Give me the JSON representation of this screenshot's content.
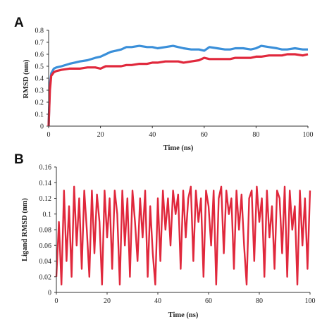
{
  "panels": [
    {
      "letter": "A",
      "xlabel": "Time (ns)",
      "ylabel": "RMSD (nm)",
      "xticks": [
        "0",
        "20",
        "40",
        "60",
        "80",
        "100"
      ],
      "yticks": [
        "0",
        "0.1",
        "0.2",
        "0.3",
        "0.4",
        "0.5",
        "0.6",
        "0.7",
        "0.8"
      ]
    },
    {
      "letter": "B",
      "xlabel": "Time (ns)",
      "ylabel": "Ligand RMSD (nm)",
      "xticks": [
        "0",
        "20",
        "40",
        "60",
        "80",
        "100"
      ],
      "yticks": [
        "0",
        "0.02",
        "0.04",
        "0.06",
        "0.08",
        "0.1",
        "0.12",
        "0.14",
        "0.16"
      ]
    }
  ],
  "chart_data": [
    {
      "type": "line",
      "title": "",
      "xlabel": "Time (ns)",
      "ylabel": "RMSD (nm)",
      "xlim": [
        0,
        100
      ],
      "ylim": [
        0,
        0.8
      ],
      "grid": false,
      "legend": "none",
      "series": [
        {
          "color": "#3a8fd9",
          "x": [
            0,
            0.5,
            1,
            2,
            3,
            5,
            8,
            10,
            12,
            15,
            18,
            20,
            22,
            24,
            26,
            28,
            30,
            32,
            35,
            38,
            40,
            42,
            45,
            48,
            50,
            52,
            55,
            58,
            60,
            62,
            65,
            68,
            70,
            72,
            75,
            78,
            80,
            82,
            85,
            88,
            90,
            92,
            95,
            98,
            100
          ],
          "y": [
            0.0,
            0.35,
            0.44,
            0.48,
            0.49,
            0.5,
            0.52,
            0.53,
            0.54,
            0.55,
            0.57,
            0.58,
            0.6,
            0.62,
            0.63,
            0.64,
            0.66,
            0.66,
            0.67,
            0.66,
            0.66,
            0.65,
            0.66,
            0.67,
            0.66,
            0.65,
            0.64,
            0.64,
            0.63,
            0.66,
            0.65,
            0.64,
            0.64,
            0.65,
            0.65,
            0.64,
            0.65,
            0.67,
            0.66,
            0.65,
            0.64,
            0.64,
            0.65,
            0.64,
            0.64
          ]
        },
        {
          "color": "#e0283c",
          "x": [
            0,
            0.5,
            1,
            2,
            3,
            5,
            8,
            10,
            12,
            15,
            18,
            20,
            22,
            24,
            26,
            28,
            30,
            32,
            35,
            38,
            40,
            42,
            45,
            48,
            50,
            52,
            55,
            58,
            60,
            62,
            65,
            68,
            70,
            72,
            75,
            78,
            80,
            82,
            85,
            88,
            90,
            92,
            95,
            98,
            100
          ],
          "y": [
            0.0,
            0.3,
            0.42,
            0.45,
            0.46,
            0.47,
            0.48,
            0.48,
            0.48,
            0.49,
            0.49,
            0.48,
            0.5,
            0.5,
            0.5,
            0.5,
            0.51,
            0.51,
            0.52,
            0.52,
            0.53,
            0.53,
            0.54,
            0.54,
            0.54,
            0.53,
            0.54,
            0.55,
            0.57,
            0.56,
            0.56,
            0.56,
            0.56,
            0.57,
            0.57,
            0.57,
            0.58,
            0.58,
            0.59,
            0.59,
            0.59,
            0.6,
            0.6,
            0.59,
            0.6
          ]
        }
      ]
    },
    {
      "type": "line",
      "title": "",
      "xlabel": "Time (ns)",
      "ylabel": "Ligand RMSD (nm)",
      "xlim": [
        0,
        100
      ],
      "ylim": [
        0,
        0.16
      ],
      "grid": false,
      "legend": "none",
      "series": [
        {
          "color": "#e0283c",
          "x": [
            0,
            1,
            2,
            3,
            4,
            5,
            6,
            7,
            8,
            9,
            10,
            11,
            12,
            13,
            14,
            15,
            16,
            17,
            18,
            19,
            20,
            21,
            22,
            23,
            24,
            25,
            26,
            27,
            28,
            29,
            30,
            31,
            32,
            33,
            34,
            35,
            36,
            37,
            38,
            39,
            40,
            41,
            42,
            43,
            44,
            45,
            46,
            47,
            48,
            49,
            50,
            51,
            52,
            53,
            54,
            55,
            56,
            57,
            58,
            59,
            60,
            61,
            62,
            63,
            64,
            65,
            66,
            67,
            68,
            69,
            70,
            71,
            72,
            73,
            74,
            75,
            76,
            77,
            78,
            79,
            80,
            81,
            82,
            83,
            84,
            85,
            86,
            87,
            88,
            89,
            90,
            91,
            92,
            93,
            94,
            95,
            96,
            97,
            98,
            99,
            100
          ],
          "y": [
            0.02,
            0.09,
            0.01,
            0.13,
            0.04,
            0.11,
            0.02,
            0.135,
            0.06,
            0.12,
            0.03,
            0.13,
            0.08,
            0.02,
            0.13,
            0.05,
            0.125,
            0.09,
            0.01,
            0.13,
            0.07,
            0.12,
            0.03,
            0.13,
            0.1,
            0.01,
            0.13,
            0.06,
            0.12,
            0.02,
            0.13,
            0.09,
            0.04,
            0.12,
            0.07,
            0.13,
            0.02,
            0.11,
            0.05,
            0.01,
            0.12,
            0.04,
            0.13,
            0.08,
            0.12,
            0.06,
            0.13,
            0.1,
            0.125,
            0.03,
            0.13,
            0.07,
            0.12,
            0.135,
            0.04,
            0.13,
            0.09,
            0.12,
            0.02,
            0.13,
            0.11,
            0.06,
            0.13,
            0.01,
            0.12,
            0.135,
            0.05,
            0.13,
            0.1,
            0.12,
            0.03,
            0.13,
            0.08,
            0.125,
            0.06,
            0.01,
            0.12,
            0.13,
            0.04,
            0.135,
            0.09,
            0.12,
            0.02,
            0.13,
            0.07,
            0.11,
            0.03,
            0.13,
            0.12,
            0.05,
            0.135,
            0.02,
            0.13,
            0.08,
            0.11,
            0.01,
            0.13,
            0.06,
            0.12,
            0.03,
            0.13
          ]
        }
      ]
    }
  ]
}
